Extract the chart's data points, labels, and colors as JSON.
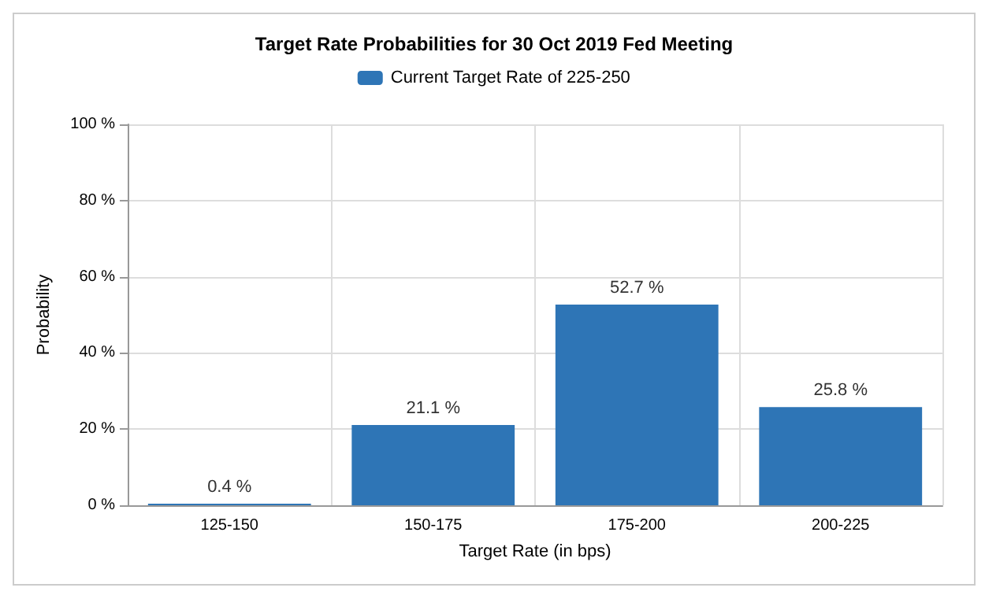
{
  "chart_data": {
    "type": "bar",
    "title": "Target Rate Probabilities for 30 Oct 2019 Fed Meeting",
    "xlabel": "Target Rate (in bps)",
    "ylabel": "Probability",
    "categories": [
      "125-150",
      "150-175",
      "175-200",
      "200-225"
    ],
    "series": [
      {
        "name": "Current Target Rate of 225-250",
        "color": "#2e75b6",
        "values": [
          0.4,
          21.1,
          52.7,
          25.8
        ],
        "value_labels": [
          "0.4 %",
          "21.1 %",
          "52.7 %",
          "25.8 %"
        ]
      }
    ],
    "ylim": [
      0,
      100
    ],
    "yticks": [
      {
        "value": 0,
        "label": "0 %"
      },
      {
        "value": 20,
        "label": "20 %"
      },
      {
        "value": 40,
        "label": "40 %"
      },
      {
        "value": 60,
        "label": "60 %"
      },
      {
        "value": 80,
        "label": "80 %"
      },
      {
        "value": 100,
        "label": "100 %"
      }
    ],
    "grid": true,
    "legend": "top"
  }
}
